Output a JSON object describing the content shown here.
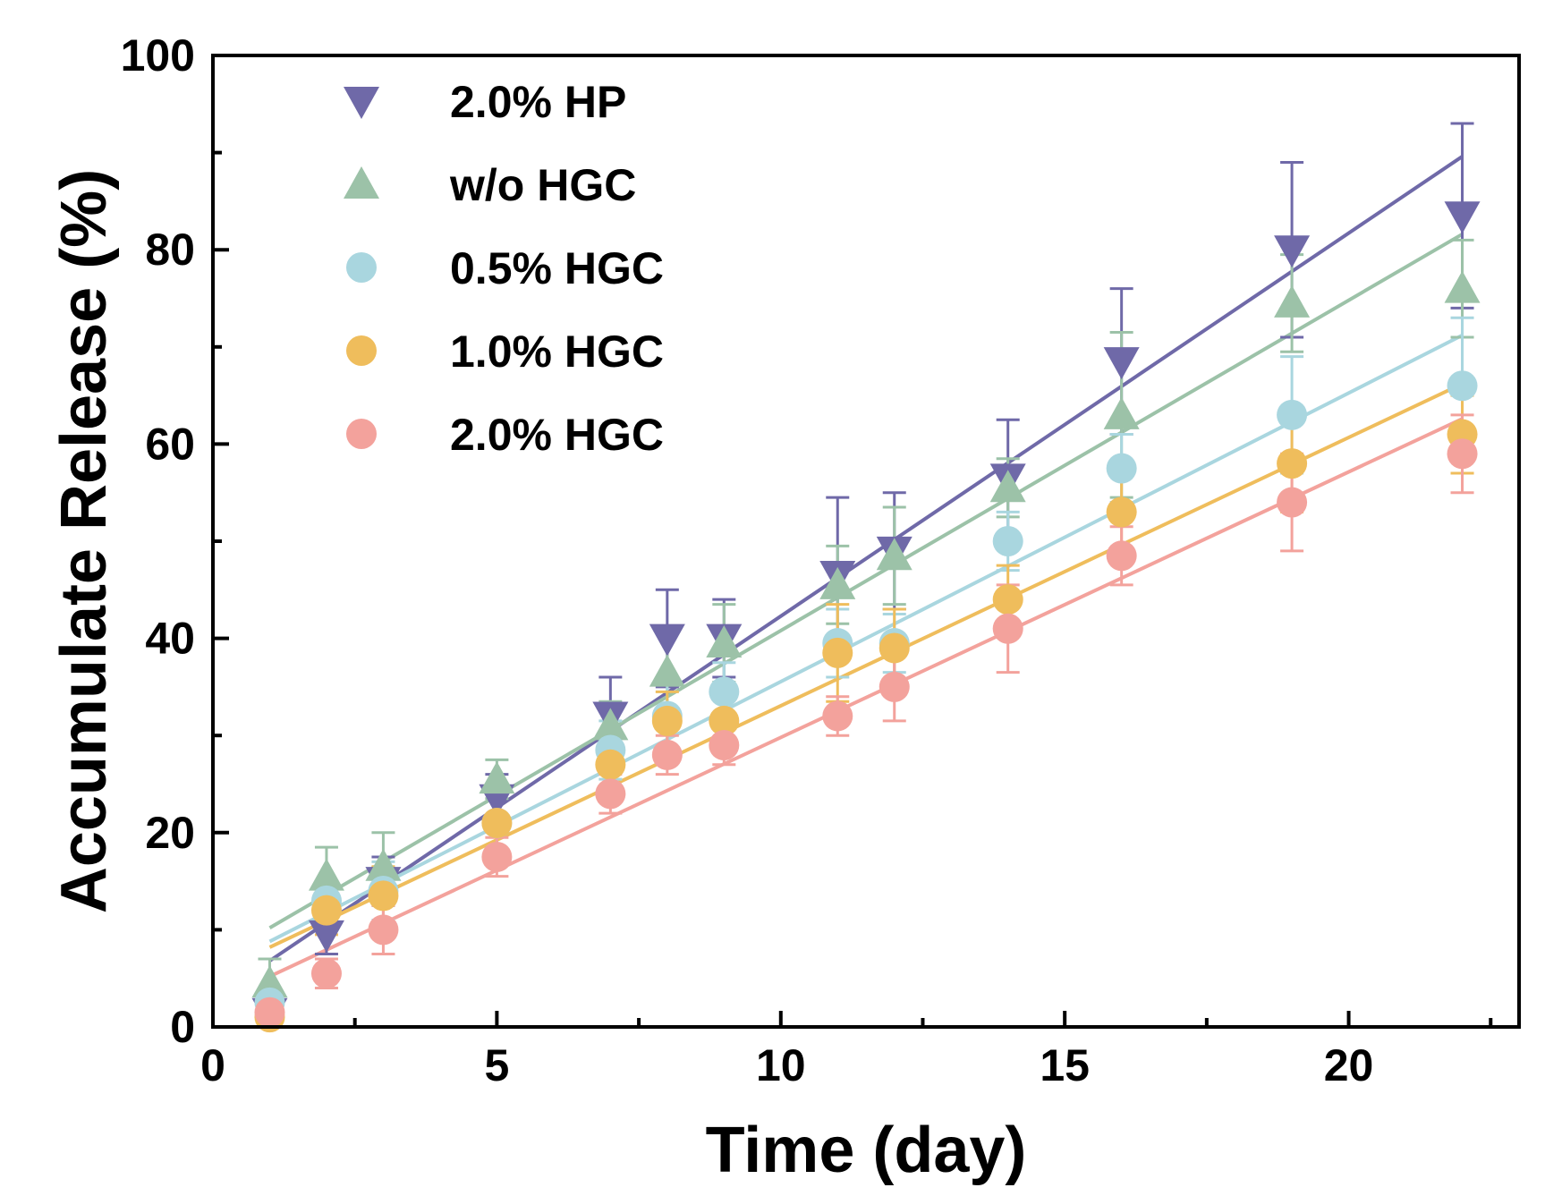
{
  "chart_data": {
    "type": "scatter",
    "xlabel": "Time (day)",
    "ylabel": "Accumulate Release (%)",
    "xlim": [
      0,
      23
    ],
    "ylim": [
      0,
      100
    ],
    "x_ticks": [
      0,
      5,
      10,
      15,
      20
    ],
    "x_tick_labels": [
      "0",
      "5",
      "10",
      "15",
      "20"
    ],
    "y_ticks": [
      0,
      20,
      40,
      60,
      80,
      100
    ],
    "y_tick_labels": [
      "0",
      "20",
      "40",
      "60",
      "80",
      "100"
    ],
    "grid": false,
    "legend_position": "top-left",
    "series": [
      {
        "name": "2.0%  HP",
        "marker": "triangle-down",
        "color": "#6f69a8",
        "x": [
          1,
          2,
          3,
          5,
          7,
          8,
          9,
          11,
          12,
          14,
          16,
          19,
          22
        ],
        "y": [
          1.5,
          9.5,
          15,
          23.5,
          32,
          40,
          40,
          46.5,
          49,
          56.5,
          68.5,
          80,
          83.5
        ],
        "error": [
          1.5,
          2,
          2.5,
          2.5,
          4,
          5,
          4,
          8,
          6,
          6,
          7.5,
          9,
          9.5
        ],
        "fit": [
          6.8,
          89.6
        ]
      },
      {
        "name": "w/o  HGC",
        "marker": "triangle-up",
        "color": "#9cc2a8",
        "x": [
          1,
          2,
          3,
          5,
          7,
          8,
          9,
          11,
          12,
          14,
          16,
          19,
          22
        ],
        "y": [
          4.5,
          15.5,
          16.5,
          25.5,
          31,
          36.5,
          39.5,
          45.5,
          48.5,
          55.5,
          63,
          74.5,
          76
        ],
        "error": [
          2.5,
          3,
          3.5,
          2,
          2.5,
          4,
          4,
          4,
          5,
          3,
          8.5,
          5,
          5
        ],
        "fit": [
          10.2,
          81.6
        ]
      },
      {
        "name": "0.5% HGC",
        "marker": "circle",
        "color": "#a9d6df",
        "x": [
          1,
          2,
          3,
          5,
          7,
          8,
          9,
          11,
          12,
          14,
          16,
          19,
          22
        ],
        "y": [
          2.5,
          13,
          14,
          21,
          28.5,
          32,
          34.5,
          39.5,
          39.5,
          50,
          57.5,
          63,
          66
        ],
        "error": [
          1.5,
          2,
          3,
          3,
          3,
          3.5,
          3,
          3.5,
          3,
          3,
          3.5,
          6,
          7
        ],
        "fit": [
          8.8,
          71.2
        ]
      },
      {
        "name": "1.0% HGC",
        "marker": "circle",
        "color": "#efbd5c",
        "x": [
          1,
          2,
          3,
          5,
          7,
          8,
          9,
          11,
          12,
          14,
          16,
          19,
          22
        ],
        "y": [
          1,
          12,
          13.5,
          21,
          27,
          31.5,
          31.5,
          38.5,
          39,
          44,
          53,
          58,
          61
        ],
        "error": [
          1,
          2.5,
          3,
          3,
          3,
          3,
          3,
          5,
          4,
          3.5,
          4,
          5,
          4
        ],
        "fit": [
          8.2,
          66.2
        ]
      },
      {
        "name": "2.0% HGC",
        "marker": "circle",
        "color": "#f3a29c",
        "x": [
          1,
          2,
          3,
          5,
          7,
          8,
          9,
          11,
          12,
          14,
          16,
          19,
          22
        ],
        "y": [
          1.5,
          5.5,
          10,
          17.5,
          24,
          28,
          29,
          32,
          35,
          41,
          48.5,
          54,
          59
        ],
        "error": [
          1,
          1.5,
          2.5,
          2,
          2,
          2,
          2,
          2,
          3.5,
          4.5,
          3,
          5,
          4
        ],
        "fit": [
          5.2,
          62.6
        ]
      }
    ]
  }
}
